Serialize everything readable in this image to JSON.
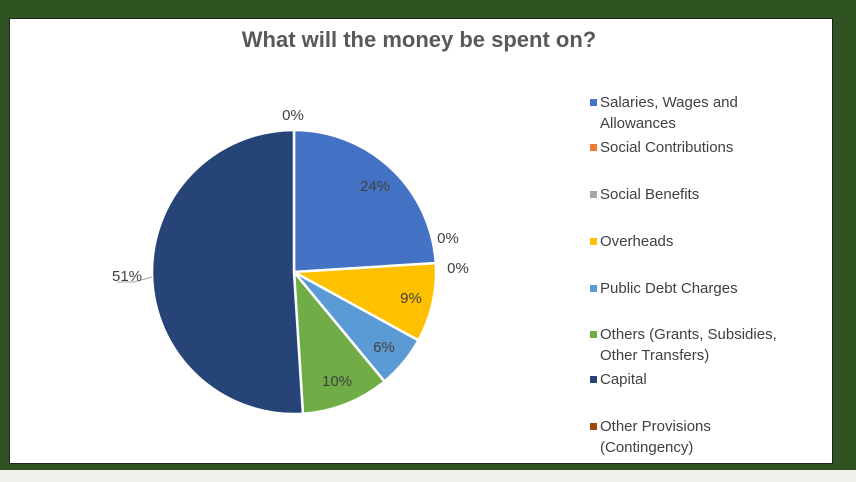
{
  "chart_data": {
    "type": "pie",
    "title": "What will the money be spent on?",
    "legend_position": "right",
    "slices": [
      {
        "name": "Salaries, Wages and Allowances",
        "value": 24,
        "label": "24%",
        "color": "#4472c4"
      },
      {
        "name": "Social Contributions",
        "value": 0,
        "label": "0%",
        "color": "#ed7d31"
      },
      {
        "name": "Social Benefits",
        "value": 0,
        "label": "0%",
        "color": "#a5a5a5"
      },
      {
        "name": "Overheads",
        "value": 9,
        "label": "9%",
        "color": "#ffc000"
      },
      {
        "name": "Public Debt Charges",
        "value": 6,
        "label": "6%",
        "color": "#5b9bd5"
      },
      {
        "name": "Others (Grants, Subsidies, Other Transfers)",
        "value": 10,
        "label": "10%",
        "color": "#70ad47"
      },
      {
        "name": "Capital",
        "value": 51,
        "label": "51%",
        "color": "#264478"
      },
      {
        "name": "Other Provisions (Contingency)",
        "value": 0,
        "label": "0%",
        "color": "#9e480e"
      }
    ]
  },
  "legend": {
    "items": [
      {
        "lines": [
          "Salaries, Wages and",
          "Allowances"
        ],
        "color": "#4472c4"
      },
      {
        "lines": [
          "Social Contributions"
        ],
        "color": "#ed7d31"
      },
      {
        "lines": [
          "Social Benefits"
        ],
        "color": "#a5a5a5"
      },
      {
        "lines": [
          "Overheads"
        ],
        "color": "#ffc000"
      },
      {
        "lines": [
          "Public Debt Charges"
        ],
        "color": "#5b9bd5"
      },
      {
        "lines": [
          "Others (Grants, Subsidies,",
          "Other Transfers)"
        ],
        "color": "#70ad47"
      },
      {
        "lines": [
          "Capital"
        ],
        "color": "#264478"
      },
      {
        "lines": [
          "Other Provisions",
          "(Contingency)"
        ],
        "color": "#9e480e"
      }
    ]
  }
}
